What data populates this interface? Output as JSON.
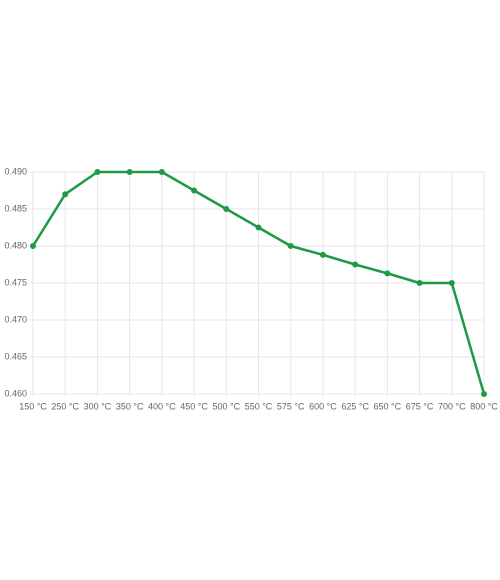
{
  "chart_data": {
    "type": "line",
    "categories": [
      "150 °C",
      "250 °C",
      "300 °C",
      "350 °C",
      "400 °C",
      "450 °C",
      "500 °C",
      "550 °C",
      "575 °C",
      "600 °C",
      "625 °C",
      "650 °C",
      "675 °C",
      "700 °C",
      "800 °C"
    ],
    "values": [
      0.48,
      0.487,
      0.49,
      0.49,
      0.49,
      0.4875,
      0.485,
      0.4825,
      0.48,
      0.4788,
      0.4775,
      0.4763,
      0.475,
      0.475,
      0.46
    ],
    "color": "#1e9a45",
    "ylim": [
      0.46,
      0.49
    ],
    "yticks": [
      {
        "value": 0.46,
        "label": "0.460"
      },
      {
        "value": 0.465,
        "label": "0.465"
      },
      {
        "value": 0.47,
        "label": "0.470"
      },
      {
        "value": 0.475,
        "label": "0.475"
      },
      {
        "value": 0.48,
        "label": "0.480"
      },
      {
        "value": 0.485,
        "label": "0.485"
      },
      {
        "value": 0.49,
        "label": "0.490"
      }
    ],
    "grid": true
  }
}
